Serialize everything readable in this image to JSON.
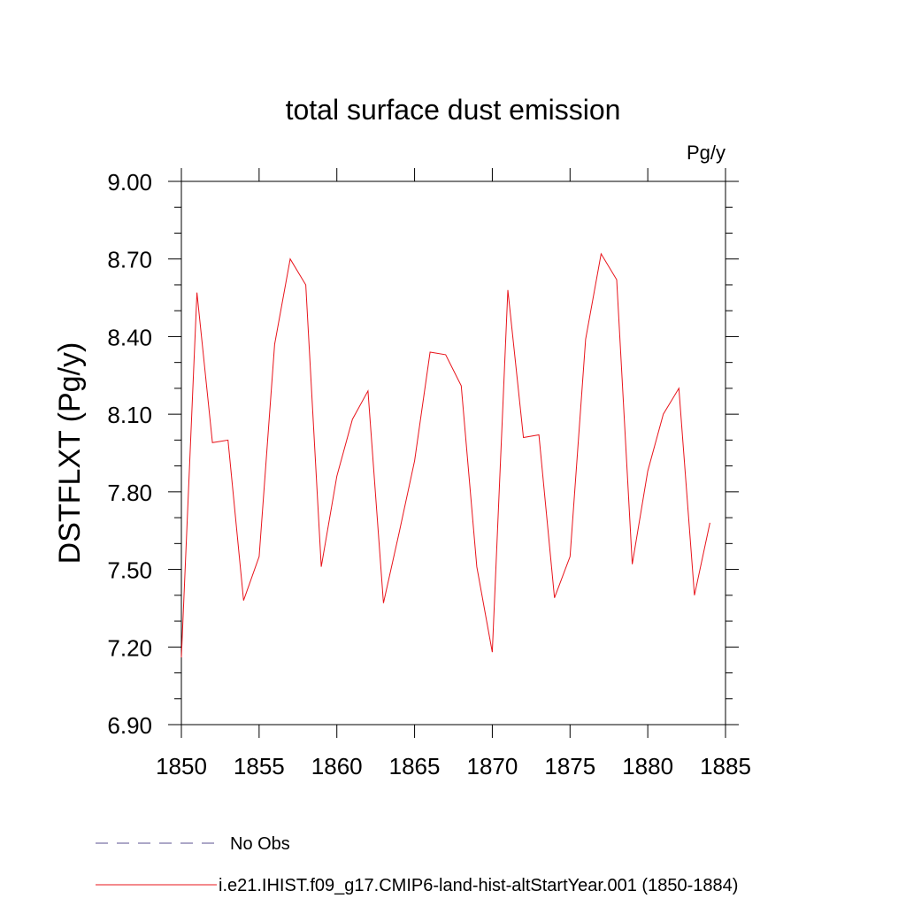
{
  "chart_data": {
    "type": "line",
    "title": "total surface dust emission",
    "units": "Pg/y",
    "ylabel": "DSTFLXT  (Pg/y)",
    "xlabel": "",
    "xlim": [
      1850,
      1885
    ],
    "ylim": [
      6.9,
      9.0
    ],
    "x_ticks": [
      1850,
      1855,
      1860,
      1865,
      1870,
      1875,
      1880,
      1885
    ],
    "x_tick_labels": [
      "1850",
      "1855",
      "1860",
      "1865",
      "1870",
      "1875",
      "1880",
      "1885"
    ],
    "y_ticks": [
      6.9,
      7.2,
      7.5,
      7.8,
      8.1,
      8.4,
      8.7,
      9.0
    ],
    "y_tick_labels": [
      "6.90",
      "7.20",
      "7.50",
      "7.80",
      "8.10",
      "8.40",
      "8.70",
      "9.00"
    ],
    "grid": false,
    "legend_position": "bottom",
    "legend": [
      {
        "label": "No Obs",
        "color": "#5a4f8f",
        "style": "dashed"
      },
      {
        "label": "i.e21.IHIST.f09_g17.CMIP6-land-hist-altStartYear.001 (1850-1884)",
        "color": "#e8141b",
        "style": "solid"
      }
    ],
    "series": [
      {
        "name": "i.e21.IHIST.f09_g17.CMIP6-land-hist-altStartYear.001 (1850-1884)",
        "color": "#e8141b",
        "x": [
          1850,
          1851,
          1852,
          1853,
          1854,
          1855,
          1856,
          1857,
          1858,
          1859,
          1860,
          1861,
          1862,
          1863,
          1864,
          1865,
          1866,
          1867,
          1868,
          1869,
          1870,
          1871,
          1872,
          1873,
          1874,
          1875,
          1876,
          1877,
          1878,
          1879,
          1880,
          1881,
          1882,
          1883,
          1884
        ],
        "values": [
          7.16,
          8.57,
          7.99,
          8.0,
          7.38,
          7.55,
          8.37,
          8.7,
          8.6,
          7.51,
          7.86,
          8.08,
          8.19,
          7.37,
          7.64,
          7.92,
          8.34,
          8.33,
          8.21,
          7.51,
          7.18,
          8.58,
          8.01,
          8.02,
          7.39,
          7.55,
          8.39,
          8.72,
          8.62,
          7.52,
          7.88,
          8.1,
          8.2,
          7.4,
          7.68
        ]
      }
    ]
  }
}
